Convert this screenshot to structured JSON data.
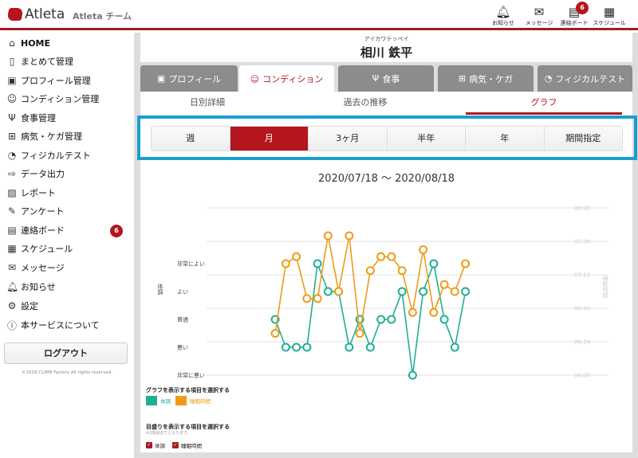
{
  "header": {
    "logo": "Atleta",
    "team": "Atleta チーム",
    "icons": [
      {
        "label": "お知らせ",
        "icon": "bell-icon"
      },
      {
        "label": "メッセージ",
        "icon": "envelope-icon"
      },
      {
        "label": "連絡ボード",
        "icon": "board-icon",
        "badge": "6"
      },
      {
        "label": "スケジュール",
        "icon": "calendar-icon"
      }
    ]
  },
  "sidebar": {
    "items": [
      {
        "label": "HOME",
        "icon": "home-icon"
      },
      {
        "label": "まとめて管理",
        "icon": "document-icon"
      },
      {
        "label": "プロフィール管理",
        "icon": "profile-icon"
      },
      {
        "label": "コンディション管理",
        "icon": "smile-icon"
      },
      {
        "label": "食事管理",
        "icon": "fork-knife-icon"
      },
      {
        "label": "病気・ケガ管理",
        "icon": "first-aid-icon"
      },
      {
        "label": "フィジカルテスト",
        "icon": "gauge-icon"
      },
      {
        "label": "データ出力",
        "icon": "export-icon"
      },
      {
        "label": "レポート",
        "icon": "report-icon"
      },
      {
        "label": "アンケート",
        "icon": "clipboard-icon"
      },
      {
        "label": "連絡ボード",
        "icon": "board-icon",
        "badge": "6"
      },
      {
        "label": "スケジュール",
        "icon": "calendar-icon"
      },
      {
        "label": "メッセージ",
        "icon": "envelope-icon"
      },
      {
        "label": "お知らせ",
        "icon": "bell-icon"
      },
      {
        "label": "設定",
        "icon": "gear-icon"
      },
      {
        "label": "本サービスについて",
        "icon": "info-icon"
      }
    ],
    "logout": "ログアウト",
    "copyright": "©2018 CLIMB Factory All rights reserved."
  },
  "athlete": {
    "kana": "アイカワテッペイ",
    "name": "相川 鉄平"
  },
  "tabs": [
    {
      "label": "プロフィール",
      "icon": "profile-icon"
    },
    {
      "label": "コンディション",
      "icon": "smile-icon",
      "active": true
    },
    {
      "label": "食事",
      "icon": "fork-knife-icon"
    },
    {
      "label": "病気・ケガ",
      "icon": "first-aid-icon"
    },
    {
      "label": "フィジカルテスト",
      "icon": "gauge-icon"
    }
  ],
  "subtabs": [
    {
      "label": "日別詳細"
    },
    {
      "label": "過去の推移"
    },
    {
      "label": "グラフ",
      "active": true
    }
  ],
  "periods": [
    {
      "label": "週"
    },
    {
      "label": "月",
      "active": true
    },
    {
      "label": "3ヶ月"
    },
    {
      "label": "半年"
    },
    {
      "label": "年"
    },
    {
      "label": "期間指定"
    }
  ],
  "range": "2020/07/18 ～ 2020/08/18",
  "chart_data": {
    "type": "line",
    "title": "2020/07/18 ～ 2020/08/18",
    "xlim": [
      "2020/07/18",
      "2020/08/18"
    ],
    "ylabel": "体調",
    "ylabel_right": "睡眠時間",
    "left_ticks": [
      "非常に悪い",
      "悪い",
      "普通",
      "よい",
      "非常によい"
    ],
    "right_ticks": [
      "06:00",
      "06:24",
      "06:48",
      "07:12",
      "07:36",
      "08:00"
    ],
    "grid": true,
    "series": [
      {
        "name": "体調",
        "color": "#1fae94",
        "axis": "left",
        "values": [
          null,
          null,
          null,
          null,
          null,
          null,
          3,
          2,
          2,
          2,
          5,
          4,
          4,
          2,
          3,
          2,
          3,
          3,
          4,
          1,
          4,
          5,
          3,
          2,
          4,
          null,
          null,
          null,
          null,
          null,
          null,
          null
        ]
      },
      {
        "name": "睡眠時間",
        "color": "#ef9b16",
        "axis": "right",
        "values": [
          null,
          null,
          null,
          null,
          null,
          null,
          "06:30",
          "07:20",
          "07:25",
          "06:55",
          "06:55",
          "07:40",
          "07:00",
          "07:40",
          "06:30",
          "07:15",
          "07:25",
          "07:25",
          "07:15",
          "06:45",
          "07:30",
          "06:45",
          "07:05",
          "07:00",
          "07:20",
          null,
          null,
          null,
          null,
          null,
          null,
          null
        ]
      }
    ]
  },
  "legend": {
    "graph_title": "グラフを表示する項目を選択する",
    "scale_title": "目盛りを表示する項目を選択する",
    "scale_note": "※2項目までとなります。",
    "items": [
      {
        "label": "体調",
        "color": "#1fae94"
      },
      {
        "label": "睡眠時間",
        "color": "#ef9b16"
      }
    ]
  }
}
